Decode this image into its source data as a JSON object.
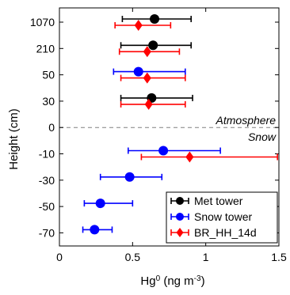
{
  "chart_data": {
    "type": "scatter",
    "xlabel": "Hg⁰ (ng m⁻³)",
    "ylabel": "Height (cm)",
    "xlim": [
      0,
      1.5
    ],
    "xticks": [
      {
        "value": 0,
        "label": "0"
      },
      {
        "value": 0.5,
        "label": "0.5"
      },
      {
        "value": 1,
        "label": "1"
      },
      {
        "value": 1.5,
        "label": "1.5"
      }
    ],
    "y_categories": [
      "1070",
      "210",
      "50",
      "30",
      "0",
      "-10",
      "-30",
      "-50",
      "-70"
    ],
    "separator": {
      "y": "0",
      "style": "dashed"
    },
    "annotations": [
      {
        "text": "Atmosphere",
        "style": "italic",
        "near_y": "0",
        "side": "above"
      },
      {
        "text": "Snow",
        "style": "italic",
        "near_y": "0",
        "side": "below"
      }
    ],
    "legend": {
      "position": "bottom-right",
      "entries": [
        "Met tower",
        "Snow tower",
        "BR_HH_14d"
      ]
    },
    "series": [
      {
        "name": "Met tower",
        "color": "#000000",
        "marker": "circle",
        "points": [
          {
            "y": "1070",
            "x": 0.65,
            "xerr_low": 0.43,
            "xerr_high": 0.9
          },
          {
            "y": "210",
            "x": 0.64,
            "xerr_low": 0.42,
            "xerr_high": 0.9
          },
          {
            "y": "30",
            "x": 0.63,
            "xerr_low": 0.42,
            "xerr_high": 0.91
          }
        ]
      },
      {
        "name": "Snow tower",
        "color": "#0000ff",
        "marker": "circle",
        "points": [
          {
            "y": "50",
            "x": 0.54,
            "xerr_low": 0.37,
            "xerr_high": 0.86
          },
          {
            "y": "-10",
            "x": 0.71,
            "xerr_low": 0.47,
            "xerr_high": 1.1
          },
          {
            "y": "-30",
            "x": 0.48,
            "xerr_low": 0.28,
            "xerr_high": 0.7
          },
          {
            "y": "-50",
            "x": 0.28,
            "xerr_low": 0.17,
            "xerr_high": 0.5
          },
          {
            "y": "-70",
            "x": 0.24,
            "xerr_low": 0.16,
            "xerr_high": 0.36
          }
        ]
      },
      {
        "name": "BR_HH_14d",
        "color": "#ff0000",
        "marker": "diamond",
        "points": [
          {
            "y": "1070",
            "x": 0.54,
            "xerr_low": 0.38,
            "xerr_high": 0.76
          },
          {
            "y": "210",
            "x": 0.6,
            "xerr_low": 0.41,
            "xerr_high": 0.82
          },
          {
            "y": "50",
            "x": 0.6,
            "xerr_low": 0.42,
            "xerr_high": 0.86
          },
          {
            "y": "30",
            "x": 0.61,
            "xerr_low": 0.42,
            "xerr_high": 0.86
          },
          {
            "y": "-10",
            "x": 0.89,
            "xerr_low": 0.56,
            "xerr_high": 1.49
          }
        ]
      }
    ]
  }
}
